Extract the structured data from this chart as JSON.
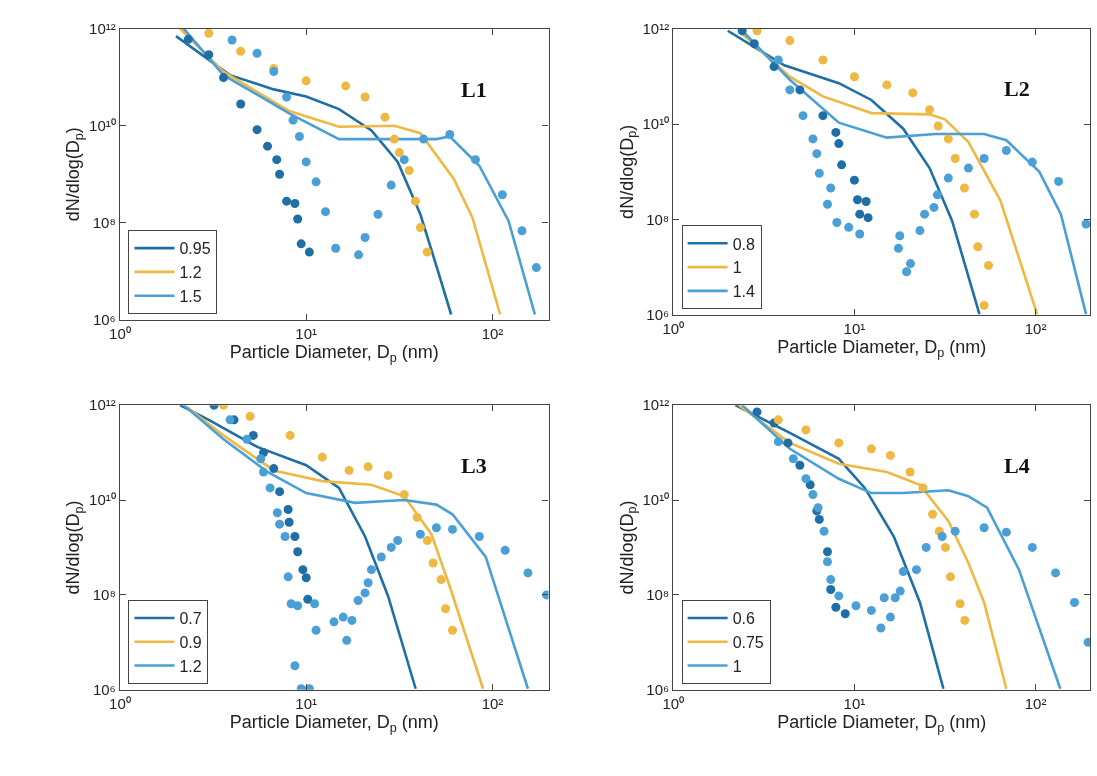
{
  "chart_data": [
    {
      "type": "line",
      "xlabel": "Particle Diameter, D$_{p}$ (nm)",
      "ylabel": "dN/dlog(D$_{p}$)",
      "annotations": [
        "L1"
      ],
      "log": "xy",
      "legend": "bottom left",
      "xlim": [
        1,
        200
      ],
      "ylim": [
        1000000.0,
        1000000000000.0
      ],
      "xticks": [
        {
          "value": 1,
          "label": "10⁰"
        },
        {
          "value": 10,
          "label": "10¹"
        },
        {
          "value": 100,
          "label": "10²"
        }
      ],
      "yticks": [
        {
          "value": 1000000.0,
          "label": "10⁶"
        },
        {
          "value": 100000000.0,
          "label": "10⁸"
        },
        {
          "value": 10000000000.0,
          "label": "10¹⁰"
        },
        {
          "value": 1000000000000.0,
          "label": "10¹²"
        }
      ],
      "series": [
        {
          "name": "0.95",
          "type": "line",
          "color": "#1f6fa6",
          "x": [
            2.0,
            3.9,
            6.7,
            10,
            15,
            22.4,
            31,
            41,
            50,
            60
          ],
          "values": [
            700000000000.0,
            110000000000.0,
            56000000000.0,
            40000000000.0,
            22000000000.0,
            8000000000.0,
            1800000000.0,
            150000000.0,
            13000000.0,
            1300000.0
          ]
        },
        {
          "name": "1.2",
          "type": "line",
          "color": "#efb843",
          "x": [
            2.1,
            3.6,
            8.1,
            15,
            29.7,
            41,
            62,
            78,
            110
          ],
          "values": [
            1000000000000.0,
            130000000000.0,
            20000000000.0,
            9500000000.0,
            10000000000.0,
            7000000000.0,
            800000000.0,
            130000000.0,
            1300000.0
          ]
        },
        {
          "name": "1.5",
          "type": "line",
          "color": "#4aa0d6",
          "x": [
            2.2,
            3.6,
            8.1,
            15,
            27.5,
            50,
            59,
            85,
            122,
            169
          ],
          "values": [
            1000000000000.0,
            110000000000.0,
            18000000000.0,
            5300000000.0,
            5300000000.0,
            5300000000.0,
            6000000000.0,
            1500000000.0,
            110000000.0,
            1300000.0
          ]
        },
        {
          "type": "scatter",
          "marker": "circle",
          "color": "#1f6fa6",
          "x": [
            2.33,
            3.0,
            3.6,
            4.45,
            5.45,
            6.2,
            6.95,
            7.2,
            7.85,
            8.7,
            9.0,
            9.4,
            10.4
          ],
          "values": [
            600000000000.0,
            290000000000.0,
            98000000000.0,
            28000000000.0,
            8300000000.0,
            3800000000.0,
            2000000000.0,
            1000000000.0,
            280000000.0,
            250000000.0,
            120000000.0,
            37000000.0,
            25000000.0
          ]
        },
        {
          "type": "scatter",
          "marker": "circle",
          "color": "#efb843",
          "x": [
            3.0,
            4.45,
            6.7,
            10,
            16.3,
            20.7,
            26.5,
            29.7,
            31.6,
            35.7,
            38.6,
            41,
            44.6
          ],
          "values": [
            800000000000.0,
            340000000000.0,
            150000000000.0,
            84000000000.0,
            66000000000.0,
            39000000000.0,
            15000000000.0,
            5300000000.0,
            2800000000.0,
            1200000000.0,
            280000000.0,
            80000000.0,
            25000000.0
          ]
        },
        {
          "type": "scatter",
          "marker": "circle",
          "color": "#4aa0d6",
          "x": [
            4.0,
            5.45,
            6.7,
            7.85,
            8.5,
            9.2,
            10,
            11.3,
            12.7,
            14.4,
            19.1,
            20.7,
            24.3,
            28.6,
            33.6,
            42.7,
            59,
            81,
            113,
            144,
            172
          ],
          "values": [
            580000000000.0,
            310000000000.0,
            130000000000.0,
            39000000000.0,
            13000000000.0,
            6000000000.0,
            1800000000.0,
            700000000.0,
            170000000.0,
            30000000.0,
            22000000.0,
            50000000.0,
            150000000.0,
            600000000.0,
            2000000000.0,
            5300000000.0,
            6600000000.0,
            2000000000.0,
            380000000.0,
            69000000.0,
            12000000.0
          ]
        }
      ]
    },
    {
      "type": "line",
      "xlabel": "Particle Diameter, D$_{p}$ (nm)",
      "ylabel": "dN/dlog(D$_{p}$)",
      "annotations": [
        "L2"
      ],
      "log": "xy",
      "legend": "bottom left",
      "xlim": [
        1,
        200
      ],
      "ylim": [
        1000000.0,
        1000000000000.0
      ],
      "xticks": [
        {
          "value": 1,
          "label": "10⁰"
        },
        {
          "value": 10,
          "label": "10¹"
        },
        {
          "value": 100,
          "label": "10²"
        }
      ],
      "yticks": [
        {
          "value": 1000000.0,
          "label": "10⁶"
        },
        {
          "value": 100000000.0,
          "label": "10⁸"
        },
        {
          "value": 10000000000.0,
          "label": "10¹⁰"
        },
        {
          "value": 1000000000000.0,
          "label": "10¹²"
        }
      ],
      "series": [
        {
          "name": "0.8",
          "type": "line",
          "color": "#1f6fa6",
          "x": [
            2.0,
            4.1,
            8.2,
            12.4,
            18.6,
            26,
            34.6,
            49
          ],
          "values": [
            900000000000.0,
            170000000000.0,
            72000000000.0,
            32000000000.0,
            8000000000.0,
            1200000000.0,
            95000000.0,
            1050000.0
          ]
        },
        {
          "name": "1",
          "type": "line",
          "color": "#efb843",
          "x": [
            2.3,
            4.4,
            6.7,
            12.4,
            26,
            31.6,
            42.6,
            64,
            102
          ],
          "values": [
            900000000000.0,
            98000000000.0,
            38000000000.0,
            17000000000.0,
            16000000000.0,
            12600000000.0,
            4200000000.0,
            250000000.0,
            1050000.0
          ]
        },
        {
          "name": "1.4",
          "type": "line",
          "color": "#4aa0d6",
          "x": [
            2.4,
            4.4,
            8.2,
            15.1,
            28,
            52,
            69,
            105,
            138,
            190
          ],
          "values": [
            900000000000.0,
            85000000000.0,
            10700000000.0,
            5200000000.0,
            6200000000.0,
            6200000000.0,
            4600000000.0,
            1000000000.0,
            130000000.0,
            1050000.0
          ]
        },
        {
          "type": "scatter",
          "marker": "circle",
          "color": "#1f6fa6",
          "x": [
            2.4,
            2.8,
            3.6,
            5.0,
            6.7,
            7.9,
            8.2,
            8.5,
            10,
            10.4,
            11.6,
            10.7,
            11.9
          ],
          "values": [
            900000000000.0,
            480000000000.0,
            160000000000.0,
            52000000000.0,
            15000000000.0,
            6700000000.0,
            3900000000.0,
            1400000000.0,
            670000000.0,
            260000000.0,
            240000000.0,
            130000000.0,
            110000000.0
          ]
        },
        {
          "type": "scatter",
          "marker": "circle",
          "color": "#efb843",
          "x": [
            2.9,
            4.4,
            6.7,
            10,
            15.1,
            21,
            26,
            29,
            33,
            36,
            40.5,
            46,
            48,
            55,
            52
          ],
          "values": [
            900000000000.0,
            560000000000.0,
            220000000000.0,
            98000000000.0,
            66000000000.0,
            45000000000.0,
            20000000000.0,
            9100000000.0,
            4900000000.0,
            1900000000.0,
            460000000.0,
            130000000.0,
            27000000.0,
            11000000.0,
            1600000.0
          ]
        },
        {
          "type": "scatter",
          "marker": "circle",
          "color": "#4aa0d6",
          "x": [
            3.8,
            4.4,
            5.2,
            5.9,
            6.2,
            6.4,
            7.4,
            7.1,
            8.0,
            9.3,
            10.7,
            17.5,
            17.8,
            19.4,
            20.4,
            23,
            24.4,
            27.5,
            28.7,
            33,
            42.6,
            52,
            69,
            96,
            134,
            190
          ],
          "values": [
            220000000000.0,
            52000000000.0,
            15000000000.0,
            4900000000.0,
            2400000000.0,
            930000000.0,
            460000000.0,
            210000000.0,
            87000000.0,
            69000000.0,
            50000000.0,
            25000000.0,
            46000000.0,
            8100000.0,
            12000000.0,
            59000000.0,
            130000000.0,
            180000000.0,
            330000000.0,
            740000000.0,
            1200000000.0,
            1900000000.0,
            2800000000.0,
            1600000000.0,
            630000000.0,
            81000000.0
          ]
        }
      ]
    },
    {
      "type": "line",
      "xlabel": "Particle Diameter, D$_{p}$ (nm)",
      "ylabel": "dN/dlog(D$_{p}$)",
      "annotations": [
        "L3"
      ],
      "log": "xy",
      "legend": "bottom left",
      "xlim": [
        1,
        200
      ],
      "ylim": [
        1000000.0,
        1000000000000.0
      ],
      "xticks": [
        {
          "value": 1,
          "label": "10⁰"
        },
        {
          "value": 10,
          "label": "10¹"
        },
        {
          "value": 100,
          "label": "10²"
        }
      ],
      "yticks": [
        {
          "value": 1000000.0,
          "label": "10⁶"
        },
        {
          "value": 100000000.0,
          "label": "10⁸"
        },
        {
          "value": 10000000000.0,
          "label": "10¹⁰"
        },
        {
          "value": 1000000000000.0,
          "label": "10¹²"
        }
      ],
      "series": [
        {
          "name": "0.7",
          "type": "line",
          "color": "#1f6fa6",
          "x": [
            2.1,
            3.0,
            5.5,
            10,
            15,
            20.7,
            27.5,
            38.7
          ],
          "values": [
            1000000000000.0,
            490000000000.0,
            130000000000.0,
            54000000000.0,
            18000000000.0,
            1700000000.0,
            95000000.0,
            1050000.0
          ]
        },
        {
          "name": "0.9",
          "type": "line",
          "color": "#efb843",
          "x": [
            2.3,
            3.6,
            6.7,
            12.2,
            22.4,
            33.6,
            47,
            59,
            89
          ],
          "values": [
            900000000000.0,
            230000000000.0,
            42000000000.0,
            25000000000.0,
            21000000000.0,
            12000000000.0,
            1900000000.0,
            150000000.0,
            1050000.0
          ]
        },
        {
          "name": "1.2",
          "type": "line",
          "color": "#4aa0d6",
          "x": [
            2.2,
            3.6,
            6.2,
            10,
            18.3,
            33.6,
            50,
            61,
            92,
            155
          ],
          "values": [
            1000000000000.0,
            190000000000.0,
            39000000000.0,
            14000000000.0,
            8700000000.0,
            10000000000.0,
            8000000000.0,
            5000000000.0,
            630000000.0,
            1050000.0
          ]
        },
        {
          "type": "scatter",
          "marker": "circle",
          "color": "#1f6fa6",
          "x": [
            3.2,
            4.1,
            5.2,
            5.9,
            6.7,
            7.2,
            8.0,
            8.1,
            8.7,
            9.0,
            9.6,
            10,
            10.2
          ],
          "values": [
            1000000000000.0,
            490000000000.0,
            230000000000.0,
            100000000000.0,
            46000000000.0,
            15000000000.0,
            6300000000.0,
            3400000000.0,
            1700000000.0,
            810000000.0,
            340000000.0,
            230000000.0,
            81000000.0
          ]
        },
        {
          "type": "scatter",
          "marker": "circle",
          "color": "#efb843",
          "x": [
            3.6,
            5.0,
            8.2,
            12.2,
            17,
            21.5,
            27.5,
            33.6,
            39.4,
            44.7,
            48,
            53,
            56,
            61
          ],
          "values": [
            1000000000000.0,
            580000000000.0,
            230000000000.0,
            80000000000.0,
            42000000000.0,
            50000000000.0,
            33000000000.0,
            13000000000.0,
            4300000000.0,
            1400000000.0,
            470000000.0,
            210000000.0,
            51000000.0,
            18000000.0
          ]
        },
        {
          "type": "scatter",
          "marker": "circle",
          "color": "#4aa0d6",
          "x": [
            3.9,
            4.8,
            5.7,
            5.9,
            6.4,
            7.0,
            7.2,
            7.7,
            8.0,
            8.3,
            9.0,
            8.7,
            9.4,
            10.4,
            11.1,
            11.3,
            14.1,
            15.8,
            16.5,
            17.6,
            19,
            20.7,
            21.5,
            22.4,
            25.3,
            28.6,
            31,
            41,
            50,
            61,
            85,
            117,
            155,
            195
          ],
          "values": [
            490000000000.0,
            190000000000.0,
            74000000000.0,
            39000000000.0,
            18000000000.0,
            5400000000.0,
            3100000000.0,
            1700000000.0,
            240000000.0,
            65000000.0,
            59000000.0,
            3200000.0,
            1050000.0,
            1050000.0,
            65000000.0,
            18000000.0,
            27000000.0,
            34000000.0,
            11000000.0,
            29000000.0,
            76000000.0,
            110000000.0,
            180000000.0,
            340000000.0,
            630000000.0,
            1000000000.0,
            1400000000.0,
            1900000000.0,
            2600000000.0,
            2400000000.0,
            1700000000.0,
            870000000.0,
            290000000.0,
            100000000.0
          ]
        }
      ]
    },
    {
      "type": "line",
      "xlabel": "Particle Diameter, D$_{p}$ (nm)",
      "ylabel": "dN/dlog(D$_{p}$)",
      "annotations": [
        "L4"
      ],
      "log": "xy",
      "legend": "bottom left",
      "xlim": [
        1,
        200
      ],
      "ylim": [
        1000000.0,
        1000000000000.0
      ],
      "xticks": [
        {
          "value": 1,
          "label": "10⁰"
        },
        {
          "value": 10,
          "label": "10¹"
        },
        {
          "value": 100,
          "label": "10²"
        }
      ],
      "yticks": [
        {
          "value": 1000000.0,
          "label": "10⁶"
        },
        {
          "value": 100000000.0,
          "label": "10⁸"
        },
        {
          "value": 10000000000.0,
          "label": "10¹⁰"
        },
        {
          "value": 1000000000000.0,
          "label": "10¹²"
        }
      ],
      "series": [
        {
          "name": "0.6",
          "type": "line",
          "color": "#1f6fa6",
          "x": [
            2.2,
            4.4,
            8.2,
            11.4,
            16.5,
            23,
            31
          ],
          "values": [
            1000000000000.0,
            260000000000.0,
            74000000000.0,
            18000000000.0,
            1700000000.0,
            69000000.0,
            1050000.0
          ]
        },
        {
          "name": "0.75",
          "type": "line",
          "color": "#efb843",
          "x": [
            2.3,
            4.4,
            8.2,
            15.1,
            23,
            33,
            42.6,
            52,
            69
          ],
          "values": [
            1000000000000.0,
            160000000000.0,
            58000000000.0,
            39000000000.0,
            21000000000.0,
            3600000000.0,
            470000000.0,
            69000000.0,
            1050000.0
          ]
        },
        {
          "name": "1",
          "type": "line",
          "color": "#4aa0d6",
          "x": [
            2.4,
            4.4,
            8.2,
            12.4,
            18.6,
            33,
            42.6,
            54,
            81,
            137
          ],
          "values": [
            1000000000000.0,
            120000000000.0,
            28000000000.0,
            14000000000.0,
            14000000000.0,
            16000000000.0,
            12000000000.0,
            6900000000.0,
            340000000.0,
            1050000.0
          ]
        },
        {
          "type": "scatter",
          "marker": "circle",
          "color": "#1f6fa6",
          "x": [
            2.9,
            3.6,
            4.3,
            5.0,
            5.7,
            6.2,
            6.4,
            7.1,
            7.4,
            7.9,
            8.9
          ],
          "values": [
            720000000000.0,
            420000000000.0,
            160000000000.0,
            54000000000.0,
            21000000000.0,
            5900000000.0,
            3900000000.0,
            810000000.0,
            130000000.0,
            55000000.0,
            40000000.0
          ]
        },
        {
          "type": "scatter",
          "marker": "circle",
          "color": "#efb843",
          "x": [
            3.8,
            5.4,
            8.2,
            12.4,
            15.8,
            20.3,
            23.9,
            27,
            29.4,
            31.8,
            33.9,
            38.3,
            40.7
          ],
          "values": [
            490000000000.0,
            300000000000.0,
            160000000000.0,
            120000000000.0,
            87000000000.0,
            39000000000.0,
            18000000000.0,
            5000000000.0,
            2200000000.0,
            1000000000.0,
            240000000.0,
            65000000.0,
            29000000.0
          ]
        },
        {
          "type": "scatter",
          "marker": "circle",
          "color": "#4aa0d6",
          "x": [
            3.8,
            4.6,
            5.4,
            5.9,
            6.3,
            6.8,
            7.1,
            7.4,
            8.2,
            10.2,
            12.4,
            14,
            14.6,
            15.8,
            16.8,
            17.9,
            18.6,
            22,
            24.9,
            30.5,
            36,
            52,
            69,
            96,
            129,
            164,
            195
          ],
          "values": [
            170000000000.0,
            74000000000.0,
            28000000000.0,
            13000000000.0,
            6900000000.0,
            2200000000.0,
            500000000.0,
            210000000.0,
            95000000.0,
            59000000.0,
            47000000.0,
            20000000.0,
            87000000.0,
            34000000.0,
            87000000.0,
            120000000.0,
            310000000.0,
            340000000.0,
            1000000000.0,
            1700000000.0,
            2200000000.0,
            2600000000.0,
            2100000000.0,
            1000000000.0,
            290000000.0,
            69000000.0,
            10000000.0
          ]
        }
      ]
    }
  ]
}
